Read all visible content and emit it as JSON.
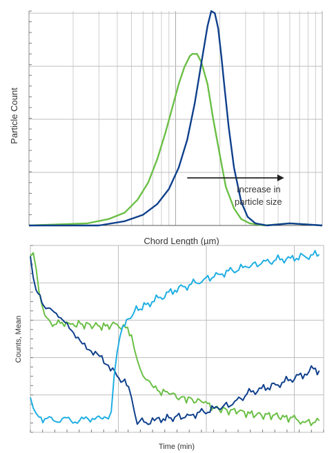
{
  "chart_data": [
    {
      "type": "line",
      "xlabel": "Chord Length (µm)",
      "ylabel": "Particle Count",
      "x_scale": "log",
      "xlim": [
        1,
        100
      ],
      "ylim": [
        0,
        1
      ],
      "grid": true,
      "legend": "none",
      "annotation": {
        "lines": [
          "Increase in",
          "particle size"
        ],
        "arrow_from_x": 12,
        "arrow_to_x": 55
      },
      "series": [
        {
          "color": "#6abf45",
          "x": [
            1.0,
            2.5,
            3.5,
            4.5,
            5.5,
            6.5,
            7.5,
            8.5,
            9.5,
            10.5,
            11.5,
            12.5,
            13.0,
            14.0,
            15.0,
            16.5,
            18.0,
            20.0,
            22.0,
            25.0,
            28.0,
            32.0,
            40.0,
            60.0,
            100.0
          ],
          "y": [
            0.0,
            0.01,
            0.03,
            0.06,
            0.12,
            0.2,
            0.31,
            0.43,
            0.55,
            0.66,
            0.74,
            0.79,
            0.8,
            0.8,
            0.76,
            0.66,
            0.5,
            0.33,
            0.18,
            0.08,
            0.03,
            0.01,
            0.0,
            0.01,
            0.0
          ]
        },
        {
          "color": "#0e3f8c",
          "x": [
            1.0,
            3.0,
            4.5,
            6.0,
            7.5,
            9.0,
            10.5,
            12.0,
            13.5,
            15.0,
            16.5,
            17.5,
            18.5,
            19.5,
            20.5,
            21.5,
            23.0,
            25.0,
            28.0,
            31.0,
            35.0,
            42.0,
            60.0,
            100.0
          ],
          "y": [
            0.0,
            0.0,
            0.02,
            0.05,
            0.1,
            0.17,
            0.27,
            0.4,
            0.57,
            0.76,
            0.93,
            1.0,
            0.99,
            0.92,
            0.79,
            0.65,
            0.46,
            0.27,
            0.11,
            0.04,
            0.01,
            0.0,
            0.01,
            0.0
          ]
        }
      ]
    },
    {
      "type": "line",
      "xlabel": "Time (min)",
      "ylabel": "Counts, Mean",
      "xlim": [
        0,
        100
      ],
      "ylim": [
        0,
        100
      ],
      "grid": true,
      "legend": "none",
      "series": [
        {
          "color": "#6abf45",
          "x": [
            0,
            1,
            2,
            3,
            4,
            5,
            7,
            9,
            11,
            14,
            18,
            22,
            26,
            30,
            33,
            35,
            36,
            37,
            38,
            39,
            40,
            42,
            44,
            48,
            52,
            56,
            60,
            64,
            68,
            72,
            76,
            80,
            84,
            88,
            92,
            95,
            100
          ],
          "y": [
            97,
            99,
            90,
            77,
            70,
            64,
            60,
            59,
            60,
            59,
            59,
            58,
            58,
            59,
            57,
            53,
            45,
            39,
            34,
            30,
            28,
            25,
            22,
            20,
            18,
            17,
            15,
            12,
            11,
            10,
            9,
            8,
            8,
            7,
            6,
            4,
            5
          ]
        },
        {
          "color": "#0e3f8c",
          "x": [
            0,
            1,
            2,
            4,
            6,
            9,
            12,
            15,
            18,
            21,
            24,
            27,
            30,
            32,
            34,
            35,
            36,
            37,
            38,
            40,
            43,
            46,
            50,
            55,
            60,
            65,
            70,
            75,
            80,
            85,
            90,
            95,
            98,
            100
          ],
          "y": [
            97,
            85,
            78,
            71,
            68,
            65,
            60,
            54,
            48,
            44,
            41,
            36,
            30,
            27,
            24,
            18,
            10,
            3,
            5,
            4,
            5,
            6,
            7,
            8,
            10,
            12,
            14,
            20,
            23,
            25,
            28,
            31,
            34,
            33
          ]
        },
        {
          "color": "#1eaee3",
          "x": [
            0,
            1,
            2,
            3,
            5,
            8,
            11,
            14,
            17,
            20,
            23,
            25,
            27,
            28,
            29,
            30,
            31,
            32,
            34,
            36,
            40,
            45,
            50,
            55,
            60,
            65,
            70,
            75,
            80,
            85,
            90,
            95,
            100
          ],
          "y": [
            18,
            12,
            9,
            7,
            6,
            5,
            6,
            5,
            5,
            6,
            7,
            6,
            6,
            10,
            30,
            43,
            52,
            58,
            62,
            66,
            70,
            74,
            78,
            81,
            84,
            87,
            89,
            91,
            93,
            95,
            96,
            97,
            98
          ]
        }
      ]
    }
  ]
}
